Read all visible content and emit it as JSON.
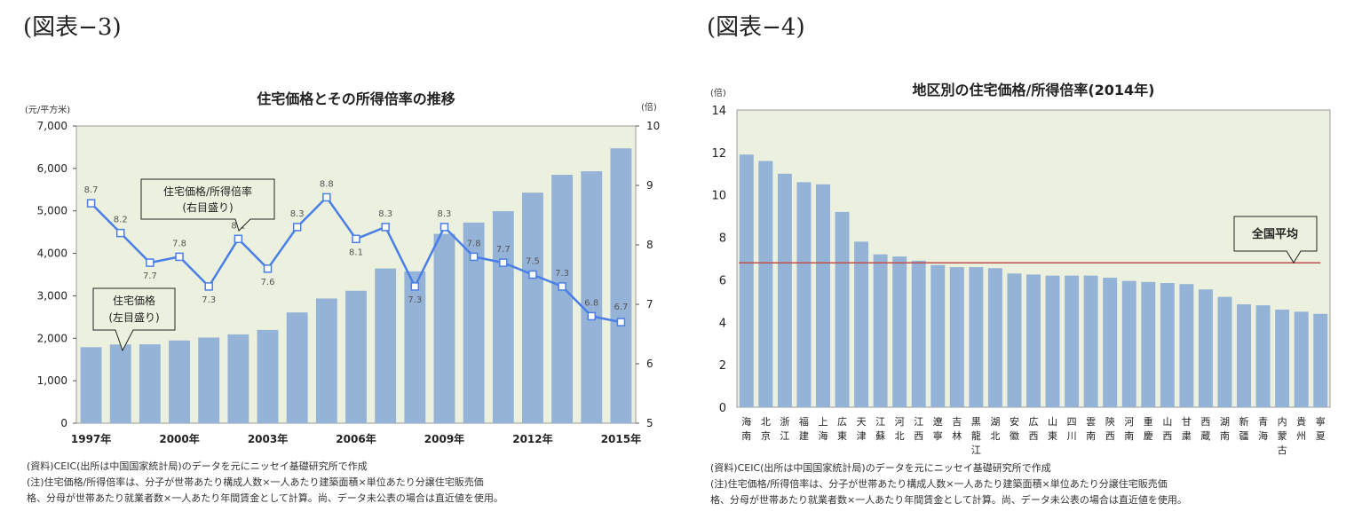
{
  "left": {
    "figure_label": "(図表−3)",
    "notes": "(資料)CEIC(出所は中国国家統計局)のデータを元にニッセイ基礎研究所で作成\n(注)住宅価格/所得倍率は、分子が世帯あたり構成人数×一人あたり建築面積×単位あたり分譲住宅販売価\n格、分母が世帯あたり就業者数×一人あたり年間賃金として計算。尚、データ未公表の場合は直近値を使用。",
    "callout_ratio": "住宅価格/所得倍率\n(右目盛り)",
    "callout_price": "住宅価格\n(左目盛り)"
  },
  "right": {
    "figure_label": "(図表−4)",
    "notes": "(資料)CEIC(出所は中国国家統計局)のデータを元にニッセイ基礎研究所で作成\n(注)住宅価格/所得倍率は、分子が世帯あたり構成人数×一人あたり建築面積×単位あたり分譲住宅販売価\n格、分母が世帯あたり就業者数×一人あたり年間賃金として計算。尚、データ未公表の場合は直近値を使用。",
    "callout_avg": "全国平均"
  },
  "chart_data": [
    {
      "type": "bar",
      "title": "住宅価格とその所得倍率の推移",
      "left_unit": "(元/平方米)",
      "right_unit": "(倍)",
      "categories": [
        "1997年",
        "1998年",
        "1999年",
        "2000年",
        "2001年",
        "2002年",
        "2003年",
        "2004年",
        "2005年",
        "2006年",
        "2007年",
        "2008年",
        "2009年",
        "2010年",
        "2011年",
        "2012年",
        "2013年",
        "2014年",
        "2015年"
      ],
      "tick_labels": [
        "1997年",
        "2000年",
        "2003年",
        "2006年",
        "2009年",
        "2012年",
        "2015年"
      ],
      "series": [
        {
          "name": "住宅価格",
          "type": "bar",
          "axis": "left",
          "color": "#94b3d7",
          "values": [
            1790,
            1854,
            1857,
            1948,
            2017,
            2092,
            2197,
            2608,
            2937,
            3119,
            3645,
            3576,
            4459,
            4725,
            4993,
            5430,
            5850,
            5933,
            6473
          ]
        },
        {
          "name": "住宅価格/所得倍率",
          "type": "line",
          "axis": "right",
          "color": "#4a7ee8",
          "values": [
            8.7,
            8.2,
            7.7,
            7.8,
            7.3,
            8.1,
            7.6,
            8.3,
            8.8,
            8.1,
            8.3,
            7.3,
            8.3,
            7.8,
            7.7,
            7.5,
            7.3,
            6.8,
            6.7
          ]
        }
      ],
      "ylim_left": [
        0,
        7000
      ],
      "yticks_left": [
        "0",
        "1,000",
        "2,000",
        "3,000",
        "4,000",
        "5,000",
        "6,000",
        "7,000"
      ],
      "ylim_right": [
        5,
        10
      ],
      "yticks_right": [
        "5",
        "6",
        "7",
        "8",
        "9",
        "10"
      ]
    },
    {
      "type": "bar",
      "title": "地区別の住宅価格/所得倍率(2014年)",
      "ylabel_unit": "(倍)",
      "categories": [
        "海南",
        "北京",
        "浙江",
        "福建",
        "上海",
        "広東",
        "天津",
        "江蘇",
        "河北",
        "江西",
        "遼寧",
        "吉林",
        "黒龍江",
        "湖北",
        "安徽",
        "広西",
        "山東",
        "四川",
        "雲南",
        "陝西",
        "河南",
        "重慶",
        "山西",
        "甘粛",
        "西蔵",
        "湖南",
        "新疆",
        "青海",
        "内蒙古",
        "貴州",
        "寧夏"
      ],
      "values": [
        11.9,
        11.6,
        11.0,
        10.6,
        10.5,
        9.2,
        7.8,
        7.2,
        7.1,
        6.9,
        6.7,
        6.6,
        6.6,
        6.55,
        6.3,
        6.25,
        6.2,
        6.2,
        6.2,
        6.1,
        5.95,
        5.9,
        5.85,
        5.8,
        5.55,
        5.2,
        4.85,
        4.8,
        4.6,
        4.5,
        4.4
      ],
      "national_average": 6.8,
      "ylim": [
        0,
        14
      ],
      "yticks": [
        "0",
        "2",
        "4",
        "6",
        "8",
        "10",
        "12",
        "14"
      ],
      "bar_color": "#94b3d7",
      "average_line_color": "#c0504d"
    }
  ]
}
